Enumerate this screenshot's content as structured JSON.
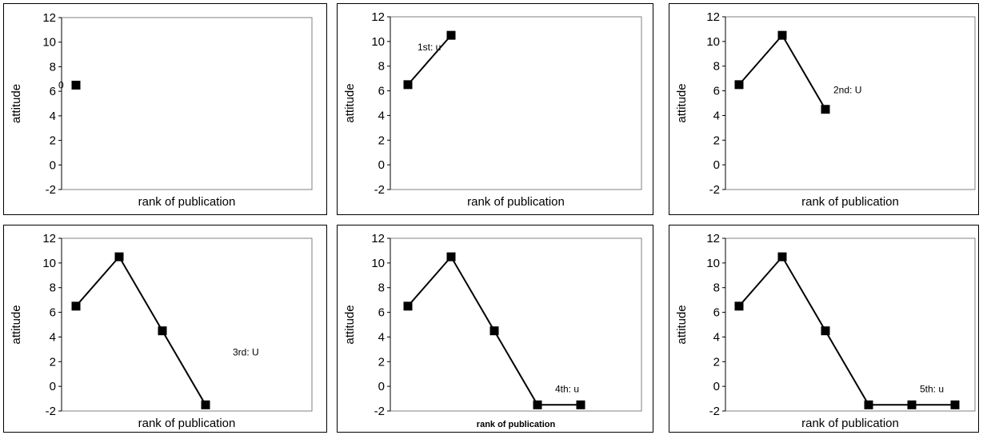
{
  "chart_data": [
    {
      "type": "line",
      "xlabel": "rank of publication",
      "ylabel": "attitude",
      "ylim": [
        -2,
        12
      ],
      "yticks": [
        "12",
        "10",
        "8",
        "6",
        "4",
        "2",
        "0",
        "-2"
      ],
      "x": [
        1
      ],
      "values": [
        6.5
      ],
      "annotation": {
        "text": "0",
        "near_point": 0
      },
      "grid": false,
      "legend": "none"
    },
    {
      "type": "line",
      "xlabel": "rank of publication",
      "ylabel": "attitude",
      "ylim": [
        -2,
        12
      ],
      "yticks": [
        "12",
        "10",
        "8",
        "6",
        "4",
        "2",
        "0",
        "-2"
      ],
      "x": [
        1,
        2
      ],
      "values": [
        6.5,
        10.5
      ],
      "annotation": {
        "text": "1st: u",
        "near_point": 1
      },
      "grid": false,
      "legend": "none"
    },
    {
      "type": "line",
      "xlabel": "rank of publication",
      "ylabel": "attitude",
      "ylim": [
        -2,
        12
      ],
      "yticks": [
        "12",
        "10",
        "8",
        "6",
        "4",
        "2",
        "0",
        "-2"
      ],
      "x": [
        1,
        2,
        3
      ],
      "values": [
        6.5,
        10.5,
        4.5
      ],
      "annotation": {
        "text": "2nd: U",
        "near_point": 2
      },
      "grid": false,
      "legend": "none"
    },
    {
      "type": "line",
      "xlabel": "rank of publication",
      "ylabel": "attitude",
      "ylim": [
        -2,
        12
      ],
      "yticks": [
        "12",
        "10",
        "8",
        "6",
        "4",
        "2",
        "0",
        "-2"
      ],
      "x": [
        1,
        2,
        3,
        4
      ],
      "values": [
        6.5,
        10.5,
        4.5,
        -1.5
      ],
      "annotation": {
        "text": "3rd: U",
        "near_point": 3
      },
      "grid": false,
      "legend": "none"
    },
    {
      "type": "line",
      "xlabel": "rank of publication",
      "ylabel": "attitude",
      "ylim": [
        -2,
        12
      ],
      "yticks": [
        "12",
        "10",
        "8",
        "6",
        "4",
        "2",
        "0",
        "-2"
      ],
      "x": [
        1,
        2,
        3,
        4,
        5
      ],
      "values": [
        6.5,
        10.5,
        4.5,
        -1.5,
        -1.5
      ],
      "annotation": {
        "text": "4th: u",
        "near_point": 4
      },
      "xlabel_bold": true,
      "grid": false,
      "legend": "none"
    },
    {
      "type": "line",
      "xlabel": "rank of publication",
      "ylabel": "attitude",
      "ylim": [
        -2,
        12
      ],
      "yticks": [
        "12",
        "10",
        "8",
        "6",
        "4",
        "2",
        "0",
        "-2"
      ],
      "x": [
        1,
        2,
        3,
        4,
        5,
        6
      ],
      "values": [
        6.5,
        10.5,
        4.5,
        -1.5,
        -1.5,
        -1.5
      ],
      "annotation": {
        "text": "5th: u",
        "near_point": 5
      },
      "grid": false,
      "legend": "none"
    }
  ]
}
